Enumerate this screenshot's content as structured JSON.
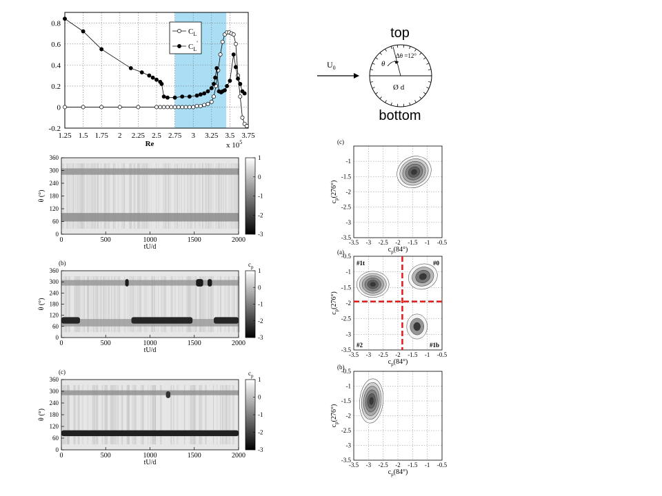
{
  "chart_data": [
    {
      "id": "lift",
      "type": "line",
      "xlabel": "Re",
      "x_multiplier": "x 10",
      "x_multiplier_exp": "5",
      "xlim": [
        1.25,
        3.75
      ],
      "ylim": [
        -0.2,
        0.9
      ],
      "x_ticks": [
        "1.25",
        "1.5",
        "1.75",
        "2",
        "2.25",
        "2.5",
        "2.75",
        "3",
        "3.25",
        "3.5",
        "3.75"
      ],
      "y_ticks": [
        "-0.2",
        "0",
        "0.2",
        "0.4",
        "0.6",
        "0.8"
      ],
      "grid": true,
      "legend_position": "top-right",
      "highlight_band": [
        2.75,
        3.45
      ],
      "highlight_color": "#a9def4",
      "series": [
        {
          "name": "C",
          "subscript": "L",
          "marker": "open-circle",
          "x": [
            1.25,
            1.5,
            1.75,
            2.0,
            2.25,
            2.5,
            2.55,
            2.6,
            2.65,
            2.7,
            2.75,
            2.8,
            2.85,
            2.9,
            2.95,
            3.0,
            3.05,
            3.1,
            3.15,
            3.2,
            3.25,
            3.28,
            3.31,
            3.34,
            3.37,
            3.4,
            3.43,
            3.46,
            3.49,
            3.52,
            3.55,
            3.58,
            3.61,
            3.64,
            3.67,
            3.7,
            3.73
          ],
          "y": [
            0.0,
            0.0,
            0.0,
            0.0,
            0.0,
            0.0,
            0.0,
            0.0,
            0.0,
            0.0,
            0.0,
            0.0,
            0.0,
            0.0,
            0.0,
            0.0,
            0.01,
            0.01,
            0.02,
            0.03,
            0.05,
            0.1,
            0.2,
            0.35,
            0.5,
            0.62,
            0.69,
            0.71,
            0.71,
            0.7,
            0.69,
            0.6,
            0.3,
            0.1,
            -0.1,
            -0.16,
            -0.18
          ]
        },
        {
          "name": "C",
          "subscript": "L",
          "superscript": "'",
          "marker": "filled-circle",
          "x": [
            1.25,
            1.5,
            1.75,
            2.15,
            2.3,
            2.4,
            2.45,
            2.5,
            2.55,
            2.57,
            2.6,
            2.65,
            2.75,
            2.85,
            2.95,
            3.05,
            3.1,
            3.15,
            3.2,
            3.25,
            3.28,
            3.3,
            3.32,
            3.35,
            3.38,
            3.4,
            3.43,
            3.46,
            3.5,
            3.55,
            3.58,
            3.61,
            3.64,
            3.67,
            3.7
          ],
          "y": [
            0.84,
            0.72,
            0.55,
            0.37,
            0.33,
            0.3,
            0.28,
            0.26,
            0.24,
            0.22,
            0.1,
            0.09,
            0.09,
            0.1,
            0.1,
            0.11,
            0.12,
            0.13,
            0.15,
            0.18,
            0.22,
            0.28,
            0.37,
            0.15,
            0.14,
            0.15,
            0.16,
            0.2,
            0.25,
            0.5,
            0.38,
            0.27,
            0.22,
            0.15,
            0.13
          ]
        }
      ]
    },
    {
      "id": "heat1",
      "type": "heatmap",
      "panel_label": "",
      "xlabel": "tU/d",
      "ylabel": "θ (°)",
      "xlim": [
        0,
        2000
      ],
      "ylim": [
        0,
        360
      ],
      "x_ticks": [
        "0",
        "500",
        "1000",
        "1500",
        "2000"
      ],
      "y_ticks": [
        "0",
        "60",
        "120",
        "180",
        "240",
        "300",
        "360"
      ],
      "colorbar_ticks": [
        "1",
        "0",
        "-1",
        "-2",
        "-3"
      ],
      "colorbar_label": "",
      "colorbar_range": [
        -3,
        1
      ],
      "bands": [
        {
          "from": 60,
          "to": 100,
          "level": -1.0
        },
        {
          "from": 280,
          "to": 310,
          "level": -0.9
        }
      ],
      "events": []
    },
    {
      "id": "heat2",
      "type": "heatmap",
      "panel_label": "(b)",
      "xlabel": "tU/d",
      "ylabel": "θ (°)",
      "xlim": [
        0,
        2000
      ],
      "ylim": [
        0,
        360
      ],
      "x_ticks": [
        "0",
        "500",
        "1000",
        "1500",
        "2000"
      ],
      "y_ticks": [
        "0",
        "60",
        "120",
        "180",
        "240",
        "300",
        "360"
      ],
      "colorbar_ticks": [
        "1",
        "0",
        "-1",
        "-2",
        "-3"
      ],
      "colorbar_label": "c",
      "colorbar_label_sub": "p",
      "colorbar_range": [
        -3,
        1
      ],
      "bands": [
        {
          "from": 60,
          "to": 100,
          "level": -0.7
        },
        {
          "from": 280,
          "to": 310,
          "level": -0.8
        }
      ],
      "events": [
        {
          "t0": 0,
          "t1": 210,
          "theta0": 75,
          "theta1": 110,
          "level": -2.7
        },
        {
          "t0": 720,
          "t1": 760,
          "theta0": 275,
          "theta1": 315,
          "level": -2.9
        },
        {
          "t0": 790,
          "t1": 1480,
          "theta0": 75,
          "theta1": 110,
          "level": -2.7
        },
        {
          "t0": 1520,
          "t1": 1600,
          "theta0": 275,
          "theta1": 315,
          "level": -2.9
        },
        {
          "t0": 1650,
          "t1": 1700,
          "theta0": 275,
          "theta1": 315,
          "level": -2.9
        },
        {
          "t0": 1720,
          "t1": 2000,
          "theta0": 75,
          "theta1": 110,
          "level": -2.7
        }
      ]
    },
    {
      "id": "heat3",
      "type": "heatmap",
      "panel_label": "(c)",
      "xlabel": "tU/d",
      "ylabel": "θ (°)",
      "xlim": [
        0,
        2000
      ],
      "ylim": [
        0,
        360
      ],
      "x_ticks": [
        "0",
        "500",
        "1000",
        "1500",
        "2000"
      ],
      "y_ticks": [
        "0",
        "60",
        "120",
        "180",
        "240",
        "300",
        "360"
      ],
      "colorbar_ticks": [
        "1",
        "0",
        "-1",
        "-2",
        "-3"
      ],
      "colorbar_label": "c",
      "colorbar_label_sub": "p",
      "colorbar_range": [
        -3,
        1
      ],
      "bands": [
        {
          "from": 280,
          "to": 305,
          "level": -0.9
        }
      ],
      "events": [
        {
          "t0": 0,
          "t1": 2000,
          "theta0": 70,
          "theta1": 100,
          "level": -2.8
        },
        {
          "t0": 1180,
          "t1": 1230,
          "theta0": 265,
          "theta1": 300,
          "level": -2.5
        }
      ]
    },
    {
      "id": "joint_c",
      "type": "scatter",
      "panel_label": "(c)",
      "xlabel_main": "c",
      "xlabel_sub": "p",
      "xlabel_rest": "(84°)",
      "ylabel_main": "c",
      "ylabel_sub": "p",
      "ylabel_rest": "(276°)",
      "xlim": [
        -3.5,
        -0.5
      ],
      "ylim": [
        -3.5,
        -0.5
      ],
      "x_ticks": [
        "-3.5",
        "-3",
        "-2.5",
        "-2",
        "-1.5",
        "-1",
        "-0.5"
      ],
      "y_ticks": [
        "-1",
        "-1.5",
        "-2",
        "-2.5",
        "-3",
        "-3.5"
      ],
      "clusters": [
        {
          "x": -1.45,
          "y": -1.35,
          "rx": 0.6,
          "ry": 0.5,
          "rotation": -30,
          "levels": 6
        }
      ],
      "quadrant_lines": null
    },
    {
      "id": "joint_a",
      "type": "scatter",
      "panel_label": "(a)",
      "xlabel_main": "c",
      "xlabel_sub": "p",
      "xlabel_rest": "(84°)",
      "ylabel_main": "c",
      "ylabel_sub": "p",
      "ylabel_rest": "(276°)",
      "xlim": [
        -3.5,
        -0.5
      ],
      "ylim": [
        -3.5,
        -0.5
      ],
      "x_ticks": [
        "-3.5",
        "-3",
        "-2.5",
        "-2",
        "-1.5",
        "-1",
        "-0.5"
      ],
      "y_ticks": [
        "-0.5",
        "-1",
        "-1.5",
        "-2",
        "-2.5",
        "-3",
        "-3.5"
      ],
      "clusters": [
        {
          "x": -2.85,
          "y": -1.4,
          "rx": 0.55,
          "ry": 0.42,
          "rotation": 0,
          "levels": 6
        },
        {
          "x": -1.15,
          "y": -1.15,
          "rx": 0.5,
          "ry": 0.4,
          "rotation": -20,
          "levels": 4
        },
        {
          "x": -1.35,
          "y": -2.75,
          "rx": 0.35,
          "ry": 0.4,
          "rotation": 0,
          "levels": 3
        }
      ],
      "quadrant_lines": {
        "x": -1.85,
        "y": -1.95,
        "color": "#e02020"
      },
      "quadrant_labels": [
        "#1t",
        "#0",
        "#2",
        "#1b"
      ]
    },
    {
      "id": "joint_b",
      "type": "scatter",
      "panel_label": "(b)",
      "xlabel_main": "c",
      "xlabel_sub": "p",
      "xlabel_rest": "(84°)",
      "ylabel_main": "c",
      "ylabel_sub": "p",
      "ylabel_rest": "(276°)",
      "xlim": [
        -3.5,
        -0.5
      ],
      "ylim": [
        -3.5,
        -0.5
      ],
      "x_ticks": [
        "-3.5",
        "-3",
        "-2.5",
        "-2",
        "-1.5",
        "-1",
        "-0.5"
      ],
      "y_ticks": [
        "-0.5",
        "-1",
        "-1.5",
        "-2",
        "-2.5",
        "-3",
        "-3.5"
      ],
      "clusters": [
        {
          "x": -2.9,
          "y": -1.5,
          "rx": 0.4,
          "ry": 0.75,
          "rotation": 5,
          "levels": 6
        }
      ],
      "quadrant_lines": null
    }
  ],
  "diagram": {
    "top_label": "top",
    "bottom_label": "bottom",
    "flow_label": "U",
    "flow_sub": "0",
    "angle_label": "θ",
    "delta_label": "Δθ =12°",
    "diameter_label": "Ø d"
  }
}
